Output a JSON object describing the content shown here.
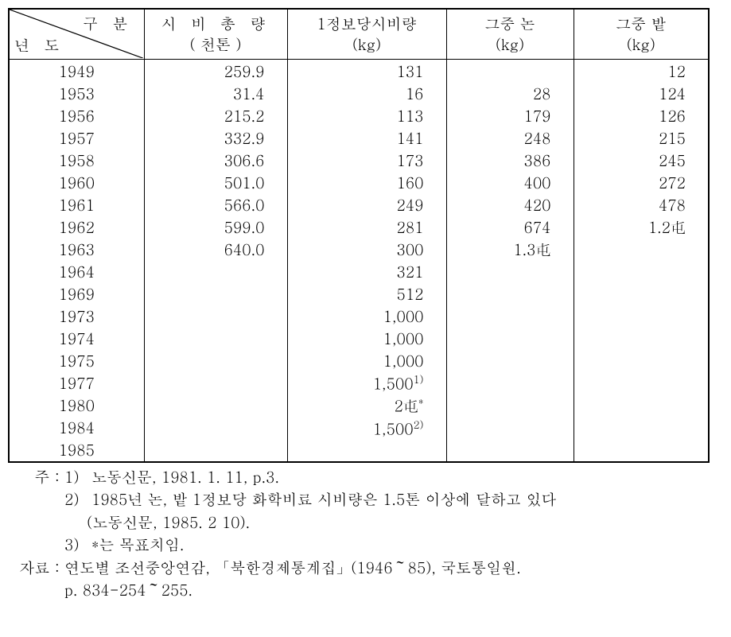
{
  "header": {
    "diag_top": "구 분",
    "diag_bottom": "년  도",
    "col2_label": "시 비 총 량",
    "col2_unit": "( 천톤 )",
    "col3_label": "1정보당시비량",
    "col3_unit": "(kg)",
    "col4_label": "그중 논",
    "col4_unit": "(kg)",
    "col5_label": "그중 밭",
    "col5_unit": "(kg)"
  },
  "rows": [
    {
      "year": "1949",
      "total": "259.9",
      "per": "131",
      "paddy": "",
      "field": "12"
    },
    {
      "year": "1953",
      "total": "31.4",
      "per": "16",
      "paddy": "28",
      "field": "124"
    },
    {
      "year": "1956",
      "total": "215.2",
      "per": "113",
      "paddy": "179",
      "field": "126"
    },
    {
      "year": "1957",
      "total": "332.9",
      "per": "141",
      "paddy": "248",
      "field": "215"
    },
    {
      "year": "1958",
      "total": "306.6",
      "per": "173",
      "paddy": "386",
      "field": "245"
    },
    {
      "year": "1960",
      "total": "501.0",
      "per": "160",
      "paddy": "400",
      "field": "272"
    },
    {
      "year": "1961",
      "total": "566.0",
      "per": "249",
      "paddy": "420",
      "field": "478"
    },
    {
      "year": "1962",
      "total": "599.0",
      "per": "281",
      "paddy": "674",
      "field": "1.2屯"
    },
    {
      "year": "1963",
      "total": "640.0",
      "per": "300",
      "paddy": "1.3屯",
      "field": ""
    },
    {
      "year": "1964",
      "total": "",
      "per": "321",
      "paddy": "",
      "field": ""
    },
    {
      "year": "1969",
      "total": "",
      "per": "512",
      "paddy": "",
      "field": ""
    },
    {
      "year": "1973",
      "total": "",
      "per": "1,000",
      "paddy": "",
      "field": ""
    },
    {
      "year": "1974",
      "total": "",
      "per": "1,000",
      "paddy": "",
      "field": ""
    },
    {
      "year": "1975",
      "total": "",
      "per": "1,000",
      "paddy": "",
      "field": ""
    },
    {
      "year": "1977",
      "total": "",
      "per": "1,500",
      "per_sup": "1)",
      "paddy": "",
      "field": ""
    },
    {
      "year": "1980",
      "total": "",
      "per": "2屯",
      "per_sup": "*",
      "paddy": "",
      "field": ""
    },
    {
      "year": "1984",
      "total": "",
      "per": "1,500",
      "per_sup": "2)",
      "paddy": "",
      "field": ""
    },
    {
      "year": "1985",
      "total": "",
      "per": "",
      "paddy": "",
      "field": ""
    }
  ],
  "notes": {
    "note_label": "주 :",
    "n1_num": "1)",
    "n1": "노동신문, 1981. 1. 11, p.3.",
    "n2_num": "2)",
    "n2a": "1985년 논, 밭 1정보당 화학비료 시비량은 1.5톤 이상에 달하고 있다",
    "n2b": "(노동신문, 1985. 2 10).",
    "n3_num": "3)",
    "n3": "*는 목표치임.",
    "src_label": "자료 :",
    "src1": "연도별 조선중앙연감, 「북한경제통계집」(1946～85), 국토통일원.",
    "src2": "p. 834-254～255."
  }
}
